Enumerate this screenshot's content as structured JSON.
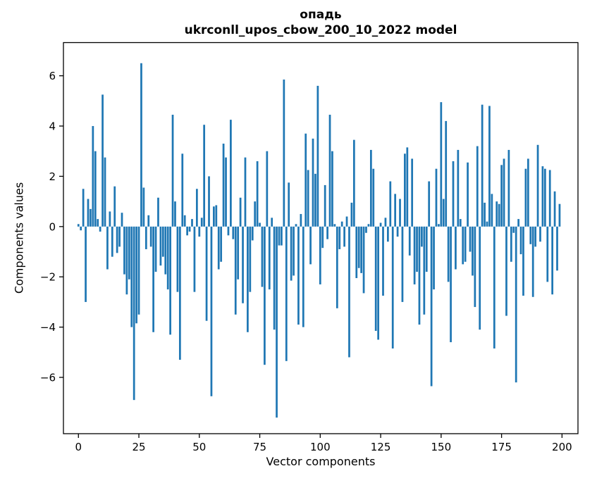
{
  "chart_data": {
    "type": "bar",
    "title_line1": "опадь",
    "title_line2": "ukrconll_upos_cbow_200_10_2022 model",
    "xlabel": "Vector components",
    "ylabel": "Components values",
    "bar_color": "#1f77b4",
    "axis_color": "#000000",
    "background_color": "#ffffff",
    "grid": false,
    "legend": false,
    "x_ticks": [
      0,
      25,
      50,
      75,
      100,
      125,
      150,
      175,
      200
    ],
    "y_ticks": [
      -6,
      -4,
      -2,
      0,
      2,
      4,
      6
    ],
    "xlim": [
      -6.2,
      206.6
    ],
    "ylim": [
      -8.24,
      7.32
    ],
    "bar_width_units": 0.8,
    "values": [
      0.1,
      -0.15,
      1.5,
      -3.0,
      1.1,
      0.7,
      4.0,
      3.0,
      0.3,
      -0.2,
      5.25,
      2.75,
      -1.7,
      0.6,
      -1.2,
      1.6,
      -1.05,
      -0.8,
      0.55,
      -1.9,
      -2.7,
      -2.1,
      -4.0,
      -6.9,
      -3.85,
      -3.5,
      6.5,
      1.55,
      -0.9,
      0.45,
      -0.8,
      -4.2,
      -1.8,
      1.15,
      -1.55,
      -1.2,
      -1.9,
      -2.5,
      -4.3,
      4.45,
      1.0,
      -2.6,
      -5.3,
      2.9,
      0.45,
      -0.35,
      -0.2,
      0.3,
      -2.6,
      1.5,
      -0.4,
      0.35,
      4.05,
      -3.75,
      2.0,
      -6.75,
      0.8,
      0.85,
      -1.7,
      -1.4,
      3.3,
      2.75,
      -0.35,
      4.25,
      -0.5,
      -3.5,
      -2.1,
      1.15,
      -3.05,
      2.75,
      -4.2,
      -2.6,
      -0.55,
      1.0,
      2.6,
      0.15,
      -2.4,
      -5.5,
      3.0,
      -2.5,
      0.35,
      -4.1,
      -7.6,
      -0.75,
      -0.75,
      5.85,
      -5.35,
      1.75,
      -2.15,
      -1.95,
      0.1,
      -3.9,
      0.5,
      -4.0,
      3.7,
      2.25,
      -1.5,
      3.5,
      2.1,
      5.6,
      -2.3,
      -0.85,
      1.65,
      -0.5,
      4.45,
      3.0,
      0.1,
      -3.25,
      -0.9,
      0.2,
      -0.8,
      0.4,
      -5.2,
      0.95,
      3.45,
      -2.05,
      -1.65,
      -1.85,
      -2.65,
      -0.25,
      0.1,
      3.05,
      2.3,
      -4.15,
      -4.5,
      0.15,
      -2.75,
      0.35,
      -0.6,
      1.8,
      -4.85,
      1.3,
      -0.4,
      1.1,
      -3.0,
      2.9,
      3.15,
      -1.15,
      2.7,
      -2.3,
      -1.8,
      -3.9,
      -0.8,
      -3.5,
      -1.8,
      1.8,
      -6.35,
      -2.5,
      2.3,
      0.1,
      4.95,
      1.1,
      4.2,
      -2.2,
      -4.6,
      2.6,
      -1.7,
      3.05,
      0.3,
      -1.5,
      -1.4,
      2.55,
      -1.0,
      -1.95,
      -3.2,
      3.2,
      -4.1,
      4.85,
      0.95,
      0.2,
      4.8,
      1.3,
      -4.85,
      1.0,
      0.9,
      2.45,
      2.7,
      -3.55,
      3.05,
      -1.4,
      -0.25,
      -6.2,
      0.3,
      -1.1,
      -2.75,
      2.3,
      2.7,
      -0.7,
      -2.8,
      -0.8,
      3.25,
      -0.6,
      2.4,
      2.3,
      -2.2,
      2.25,
      -2.7,
      1.4,
      -1.75,
      0.9
    ]
  }
}
